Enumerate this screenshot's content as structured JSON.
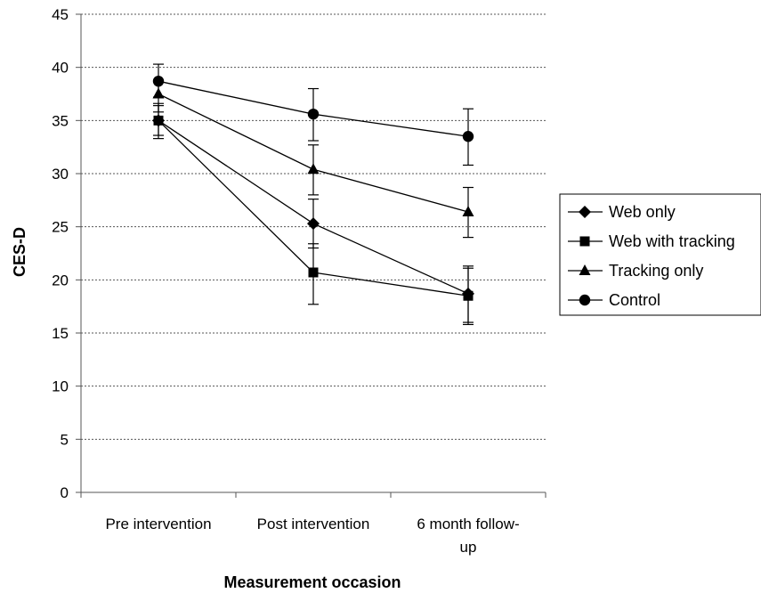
{
  "chart_data": {
    "type": "line",
    "title": "",
    "xlabel": "Measurement occasion",
    "ylabel": "CES-D",
    "ylim": [
      0,
      45
    ],
    "yticks": [
      0,
      5,
      10,
      15,
      20,
      25,
      30,
      35,
      40,
      45
    ],
    "grid": "horizontal dotted",
    "legend_position": "right",
    "categories": [
      [
        "Pre intervention"
      ],
      [
        "Post intervention"
      ],
      [
        "6 month follow-",
        "up"
      ]
    ],
    "series": [
      {
        "name": "Web only",
        "marker": "diamond",
        "values": [
          35.0,
          25.3,
          18.7
        ],
        "err_low": [
          33.3,
          23.0,
          16.0
        ],
        "err_high": [
          36.6,
          27.6,
          21.3
        ]
      },
      {
        "name": "Web with tracking",
        "marker": "square",
        "values": [
          35.0,
          20.7,
          18.5
        ],
        "err_low": [
          33.6,
          17.7,
          15.8
        ],
        "err_high": [
          36.4,
          23.4,
          21.1
        ]
      },
      {
        "name": "Tracking only",
        "marker": "triangle",
        "values": [
          37.5,
          30.4,
          26.4
        ],
        "err_low": [
          35.8,
          28.0,
          24.0
        ],
        "err_high": [
          38.8,
          32.7,
          28.7
        ]
      },
      {
        "name": "Control",
        "marker": "circle",
        "values": [
          38.7,
          35.6,
          33.5
        ],
        "err_low": [
          37.2,
          33.1,
          30.8
        ],
        "err_high": [
          40.3,
          38.0,
          36.1
        ]
      }
    ]
  }
}
